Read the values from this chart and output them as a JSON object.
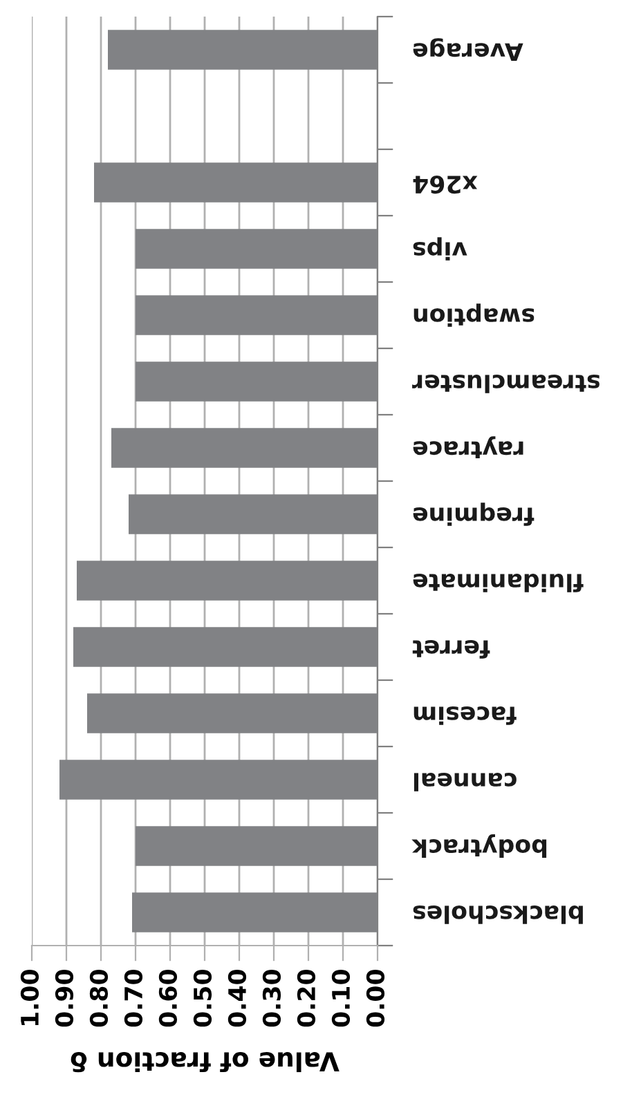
{
  "chart_data": {
    "type": "bar",
    "orientation": "horizontal",
    "xlabel": "Value of fraction δ",
    "categories": [
      "Average",
      null,
      "x264",
      "vips",
      "swaption",
      "streamcluster",
      "raytrace",
      "freqmine",
      "fluidanimate",
      "ferret",
      "facesim",
      "canneal",
      "bodytrack",
      "blackscholes"
    ],
    "values": [
      0.78,
      null,
      0.82,
      0.7,
      0.7,
      0.7,
      0.77,
      0.72,
      0.87,
      0.88,
      0.84,
      0.92,
      0.7,
      0.71
    ],
    "color": "#818285",
    "xlim": [
      1.0,
      0.0
    ],
    "xticks": [
      {
        "value": 1.0,
        "label": "1.00"
      },
      {
        "value": 0.9,
        "label": "0.90"
      },
      {
        "value": 0.8,
        "label": "0.80"
      },
      {
        "value": 0.7,
        "label": "0.70"
      },
      {
        "value": 0.6,
        "label": "0.60"
      },
      {
        "value": 0.5,
        "label": "0.50"
      },
      {
        "value": 0.4,
        "label": "0.40"
      },
      {
        "value": 0.3,
        "label": "0.30"
      },
      {
        "value": 0.2,
        "label": "0.20"
      },
      {
        "value": 0.1,
        "label": "0.10"
      },
      {
        "value": 0.0,
        "label": "0.00"
      }
    ],
    "grid": "x"
  }
}
